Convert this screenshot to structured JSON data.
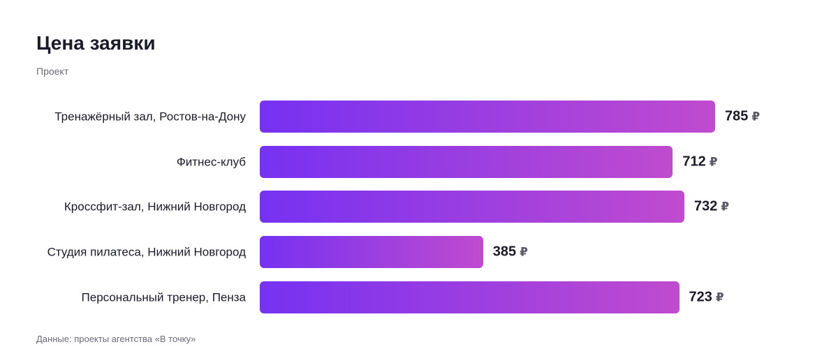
{
  "chart_data": {
    "type": "bar",
    "orientation": "horizontal",
    "title": "Цена заявки",
    "subtitle": "Проект",
    "source": "Данные: проекты агентства «В точку»",
    "categories": [
      "Тренажёрный зал, Ростов-на-Дону",
      "Фитнес-клуб",
      "Кроссфит-зал, Нижний Новгород",
      "Студия пилатеса, Нижний Новгород",
      "Персональный тренер, Пенза"
    ],
    "values": [
      785,
      712,
      732,
      385,
      723
    ],
    "unit": "₽",
    "color": [
      "#7631f2",
      "#c04bcf"
    ]
  }
}
